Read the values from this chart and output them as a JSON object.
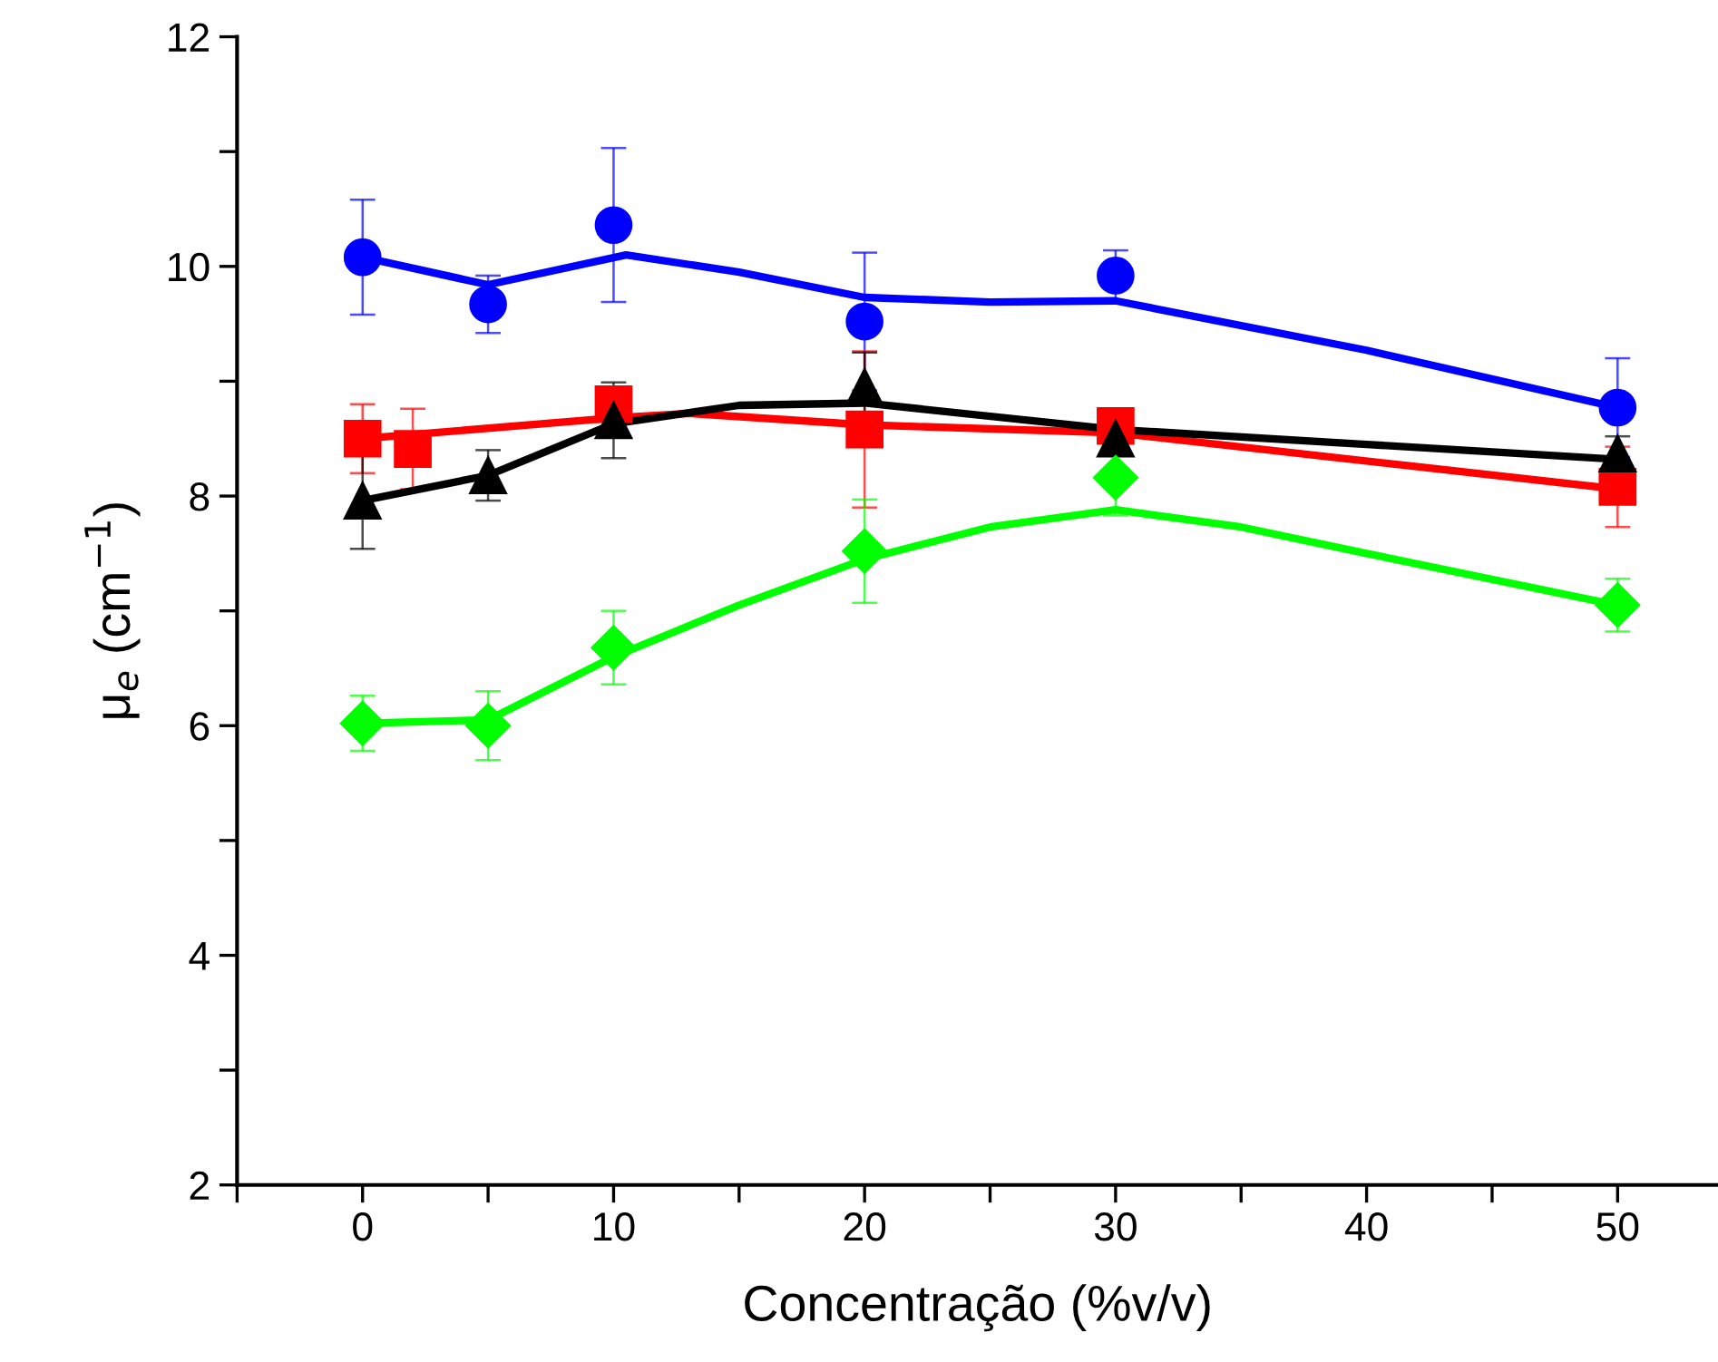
{
  "chart_data": {
    "type": "scatter",
    "xlabel": "Concentração (%v/v)",
    "ylabel": "μ$_{e}$ (cm$^{−1}$)",
    "xlim": [
      -5,
      54
    ],
    "ylim": [
      2,
      12
    ],
    "xticks": [
      {
        "value": -5,
        "label": null
      },
      0,
      {
        "value": 5,
        "label": null
      },
      10,
      {
        "value": 15,
        "label": null
      },
      20,
      {
        "value": 25,
        "label": null
      },
      30,
      {
        "value": 35,
        "label": null
      },
      40,
      {
        "value": 45,
        "label": null
      },
      50
    ],
    "yticks": [
      2,
      {
        "value": 3,
        "label": null
      },
      4,
      {
        "value": 5,
        "label": null
      },
      6,
      {
        "value": 7,
        "label": null
      },
      8,
      {
        "value": 9,
        "label": null
      },
      10,
      {
        "value": 11,
        "label": null
      },
      12
    ],
    "grid": false,
    "series": [
      {
        "marker": "circle",
        "color": "#0000ff",
        "x": [
          0,
          5,
          10,
          20,
          30,
          50
        ],
        "values": [
          10.08,
          9.67,
          10.36,
          9.52,
          9.92,
          8.77
        ],
        "errors": [
          0.5,
          0.25,
          0.67,
          0.6,
          0.22,
          0.43
        ]
      },
      {
        "marker": "square",
        "color": "#ff0000",
        "x": [
          0,
          2,
          10,
          20,
          30,
          50
        ],
        "values": [
          8.5,
          8.41,
          8.8,
          8.58,
          8.61,
          8.08
        ],
        "errors": [
          0.3,
          0.35,
          0.05,
          0.68,
          0.05,
          0.35
        ]
      },
      {
        "marker": "triangle",
        "color": "#000000",
        "x": [
          0,
          5,
          10,
          20,
          30,
          50
        ],
        "values": [
          7.96,
          8.18,
          8.66,
          8.95,
          8.5,
          8.37
        ],
        "errors": [
          0.42,
          0.22,
          0.33,
          0.3,
          0.1,
          0.15
        ]
      },
      {
        "marker": "diamond",
        "color": "#00ff00",
        "x": [
          0,
          5,
          10,
          20,
          30,
          50
        ],
        "values": [
          6.02,
          6.0,
          6.68,
          7.52,
          8.16,
          7.05
        ],
        "errors": [
          0.24,
          0.3,
          0.32,
          0.45,
          0.33,
          0.23
        ]
      },
      {
        "type": "line",
        "color": "#0000ff",
        "x": [
          0,
          5,
          10.5,
          15,
          20,
          25,
          30,
          40,
          50
        ],
        "values": [
          10.08,
          9.84,
          10.1,
          9.95,
          9.73,
          9.69,
          9.7,
          9.27,
          8.77
        ]
      },
      {
        "type": "line",
        "color": "#ff0000",
        "x": [
          0,
          10,
          13,
          20,
          30,
          50
        ],
        "values": [
          8.5,
          8.68,
          8.72,
          8.62,
          8.55,
          8.06
        ]
      },
      {
        "type": "line",
        "color": "#000000",
        "x": [
          0,
          5,
          10,
          15,
          20,
          30,
          40,
          50
        ],
        "values": [
          7.96,
          8.18,
          8.63,
          8.79,
          8.81,
          8.58,
          8.45,
          8.32
        ]
      },
      {
        "type": "line",
        "color": "#00ff00",
        "x": [
          0,
          5,
          10,
          15,
          20,
          25,
          30,
          35,
          40,
          50
        ],
        "values": [
          6.02,
          6.05,
          6.6,
          7.05,
          7.45,
          7.73,
          7.88,
          7.73,
          7.5,
          7.05
        ]
      }
    ]
  }
}
